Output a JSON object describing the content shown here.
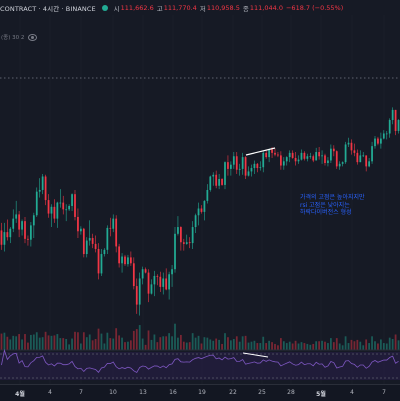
{
  "header": {
    "title": "CONTRACT · 4시간 · BINANCE",
    "open_label": "시",
    "open_value": "111,662.6",
    "high_label": "고",
    "high_value": "111,770.4",
    "low_label": "저",
    "low_value": "110,958.5",
    "close_label": "종",
    "close_value": "111,044.0",
    "change": "−618.7 (−0.55%)",
    "status_color": "#22ab94"
  },
  "indicator": {
    "label": "(종) 30 2"
  },
  "annotation": {
    "text": "가격의 고점은 높아지지만\nrsi 고점은 낮아지는\n하락다이버전스 형성",
    "color": "#2962ff"
  },
  "xaxis": {
    "ticks": [
      "4월",
      "4",
      "7",
      "10",
      "13",
      "16",
      "19",
      "22",
      "25",
      "28",
      "5월",
      "4",
      "7"
    ]
  },
  "colors": {
    "up": "#22ab94",
    "down": "#f23645",
    "rsi": "#7e57c2",
    "background": "#161a25"
  },
  "chart_data": {
    "type": "candlestick",
    "title": "",
    "candles_ohlc": [
      [
        78.0,
        78.9,
        75.7,
        76.3
      ],
      [
        76.3,
        78.9,
        75.5,
        77.8
      ],
      [
        77.8,
        79.3,
        76.8,
        77.2
      ],
      [
        77.2,
        78.4,
        76.5,
        78.2
      ],
      [
        78.2,
        80.5,
        77.8,
        79.4
      ],
      [
        79.4,
        81.5,
        78.9,
        79.9
      ],
      [
        79.9,
        80.3,
        77.2,
        78.1
      ],
      [
        78.1,
        79.3,
        77.4,
        79.1
      ],
      [
        79.1,
        79.6,
        76.5,
        77.0
      ],
      [
        77.0,
        77.4,
        76.2,
        76.9
      ],
      [
        76.9,
        79.0,
        76.1,
        78.6
      ],
      [
        78.6,
        80.1,
        77.1,
        79.8
      ],
      [
        79.8,
        83.1,
        79.6,
        82.6
      ],
      [
        82.6,
        84.2,
        81.9,
        82.8
      ],
      [
        82.8,
        84.7,
        82.3,
        84.4
      ],
      [
        84.4,
        84.6,
        81.0,
        81.6
      ],
      [
        81.6,
        82.3,
        79.5,
        80.0
      ],
      [
        80.0,
        81.1,
        78.4,
        80.8
      ],
      [
        80.8,
        81.7,
        78.9,
        79.4
      ],
      [
        79.4,
        81.4,
        78.3,
        81.3
      ],
      [
        81.3,
        82.9,
        80.7,
        81.3
      ],
      [
        81.3,
        82.1,
        79.9,
        80.5
      ],
      [
        80.5,
        81.1,
        79.1,
        80.5
      ],
      [
        80.5,
        81.1,
        80.3,
        80.9
      ],
      [
        80.9,
        82.4,
        80.3,
        82.3
      ],
      [
        82.3,
        82.8,
        79.2,
        79.6
      ],
      [
        79.6,
        80.6,
        77.1,
        77.9
      ],
      [
        77.9,
        78.5,
        77.5,
        78.2
      ],
      [
        78.2,
        78.3,
        74.8,
        75.2
      ],
      [
        75.2,
        77.2,
        74.8,
        76.8
      ],
      [
        76.8,
        79.2,
        76.2,
        77.1
      ],
      [
        77.1,
        77.6,
        75.9,
        76.4
      ],
      [
        76.4,
        77.4,
        75.4,
        75.8
      ],
      [
        75.8,
        76.5,
        72.2,
        72.9
      ],
      [
        72.9,
        75.8,
        72.6,
        75.2
      ],
      [
        75.2,
        75.9,
        74.9,
        75.7
      ],
      [
        75.7,
        78.6,
        75.2,
        78.3
      ],
      [
        78.3,
        79.5,
        77.3,
        78.2
      ],
      [
        78.2,
        79.9,
        77.8,
        79.4
      ],
      [
        79.4,
        79.8,
        75.4,
        76.1
      ],
      [
        76.1,
        76.4,
        73.6,
        74.1
      ],
      [
        74.1,
        75.3,
        73.0,
        74.9
      ],
      [
        74.9,
        75.1,
        73.8,
        74.0
      ],
      [
        74.0,
        75.1,
        73.7,
        74.8
      ],
      [
        74.8,
        75.5,
        73.8,
        74.1
      ],
      [
        74.1,
        74.8,
        71.0,
        71.4
      ],
      [
        71.4,
        72.3,
        68.1,
        69.2
      ],
      [
        69.2,
        73.0,
        67.9,
        72.3
      ],
      [
        72.3,
        73.7,
        71.6,
        73.4
      ],
      [
        73.4,
        73.6,
        72.9,
        73.0
      ],
      [
        73.0,
        73.4,
        69.5,
        70.5
      ],
      [
        70.5,
        72.2,
        70.4,
        71.6
      ],
      [
        71.6,
        73.2,
        70.2,
        72.6
      ],
      [
        72.6,
        72.8,
        71.5,
        72.5
      ],
      [
        72.5,
        73.1,
        70.7,
        71.3
      ],
      [
        71.3,
        73.0,
        70.4,
        72.3
      ],
      [
        72.3,
        73.5,
        70.9,
        71.0
      ],
      [
        71.0,
        73.1,
        69.8,
        72.8
      ],
      [
        72.8,
        73.9,
        71.3,
        73.4
      ],
      [
        73.4,
        78.4,
        73.0,
        77.6
      ],
      [
        77.6,
        79.7,
        77.4,
        78.4
      ],
      [
        78.4,
        78.5,
        75.6,
        76.6
      ],
      [
        76.6,
        77.0,
        75.6,
        76.4
      ],
      [
        76.4,
        77.5,
        76.3,
        76.6
      ],
      [
        76.6,
        77.2,
        75.9,
        76.5
      ],
      [
        76.5,
        79.1,
        75.8,
        78.4
      ],
      [
        78.4,
        80.0,
        77.7,
        79.8
      ],
      [
        79.8,
        81.3,
        78.6,
        80.6
      ],
      [
        80.6,
        81.0,
        80.0,
        80.2
      ],
      [
        80.2,
        81.6,
        79.2,
        81.5
      ],
      [
        81.5,
        83.5,
        81.2,
        82.8
      ],
      [
        82.8,
        84.5,
        82.6,
        84.4
      ],
      [
        84.4,
        84.9,
        83.3,
        84.6
      ],
      [
        84.6,
        85.1,
        83.0,
        83.3
      ],
      [
        83.3,
        84.7,
        82.9,
        84.1
      ],
      [
        84.1,
        84.2,
        83.3,
        83.4
      ],
      [
        83.4,
        86.2,
        82.9,
        86.1
      ],
      [
        86.1,
        86.9,
        84.5,
        85.3
      ],
      [
        85.3,
        86.2,
        84.5,
        85.8
      ],
      [
        85.8,
        87.3,
        85.3,
        86.8
      ],
      [
        86.8,
        87.3,
        84.7,
        85.2
      ],
      [
        85.2,
        85.9,
        84.5,
        85.3
      ],
      [
        85.3,
        87.2,
        84.6,
        86.7
      ],
      [
        86.7,
        86.8,
        84.1,
        84.5
      ],
      [
        84.5,
        85.6,
        84.4,
        85.0
      ],
      [
        85.0,
        85.8,
        84.4,
        85.4
      ],
      [
        85.4,
        86.3,
        84.7,
        85.9
      ],
      [
        85.9,
        86.0,
        84.9,
        85.4
      ],
      [
        85.4,
        86.2,
        85.1,
        85.5
      ],
      [
        85.5,
        87.4,
        84.9,
        87.2
      ],
      [
        87.2,
        87.6,
        86.5,
        86.7
      ],
      [
        86.7,
        87.7,
        86.1,
        87.6
      ],
      [
        87.6,
        87.9,
        86.6,
        87.2
      ],
      [
        87.2,
        87.7,
        86.8,
        87.0
      ],
      [
        87.0,
        87.3,
        86.7,
        86.9
      ],
      [
        86.9,
        87.4,
        85.2,
        85.7
      ],
      [
        85.7,
        86.7,
        85.2,
        86.2
      ],
      [
        86.2,
        86.8,
        85.7,
        86.7
      ],
      [
        86.7,
        87.5,
        86.1,
        87.2
      ],
      [
        87.2,
        87.5,
        86.5,
        86.6
      ],
      [
        86.6,
        87.3,
        85.7,
        86.2
      ],
      [
        86.2,
        86.9,
        85.9,
        86.4
      ],
      [
        86.4,
        87.6,
        86.3,
        87.2
      ],
      [
        87.2,
        87.4,
        86.3,
        86.5
      ],
      [
        86.5,
        87.1,
        86.2,
        86.8
      ],
      [
        86.8,
        87.2,
        86.5,
        86.8
      ],
      [
        86.8,
        87.0,
        86.1,
        86.3
      ],
      [
        86.3,
        87.8,
        86.3,
        87.3
      ],
      [
        87.3,
        87.9,
        86.4,
        86.8
      ],
      [
        86.8,
        87.5,
        85.9,
        86.9
      ],
      [
        86.9,
        87.1,
        85.7,
        86.0
      ],
      [
        86.0,
        86.7,
        85.6,
        86.3
      ],
      [
        86.3,
        88.2,
        86.0,
        87.7
      ],
      [
        87.7,
        88.1,
        86.8,
        87.4
      ],
      [
        87.4,
        87.5,
        85.3,
        85.6
      ],
      [
        85.6,
        86.2,
        85.2,
        85.9
      ],
      [
        85.9,
        86.2,
        85.6,
        86.1
      ],
      [
        86.1,
        88.5,
        85.9,
        88.2
      ],
      [
        88.2,
        89.0,
        87.9,
        88.4
      ],
      [
        88.4,
        88.8,
        87.0,
        87.5
      ],
      [
        87.5,
        88.3,
        86.8,
        87.2
      ],
      [
        87.2,
        87.6,
        85.8,
        86.1
      ],
      [
        86.1,
        87.5,
        86.1,
        86.9
      ],
      [
        86.9,
        87.3,
        86.7,
        86.9
      ],
      [
        86.9,
        86.9,
        85.0,
        85.6
      ],
      [
        85.6,
        86.6,
        85.5,
        86.2
      ],
      [
        86.2,
        88.5,
        85.9,
        88.0
      ],
      [
        88.0,
        89.2,
        87.7,
        88.9
      ],
      [
        88.9,
        89.1,
        88.1,
        88.3
      ],
      [
        88.3,
        89.6,
        87.7,
        88.9
      ],
      [
        88.9,
        89.9,
        88.8,
        89.5
      ],
      [
        89.5,
        89.8,
        88.8,
        89.5
      ],
      [
        89.5,
        91.3,
        89.0,
        91.1
      ],
      [
        91.1,
        92.6,
        90.6,
        92.3
      ],
      [
        92.3,
        92.3,
        89.3,
        89.8
      ],
      [
        89.8,
        91.2,
        89.5,
        91.1
      ]
    ],
    "x_tick_labels": [
      "4월",
      "4",
      "7",
      "10",
      "13",
      "16",
      "19",
      "22",
      "25",
      "28",
      "5월",
      "4",
      "7"
    ],
    "rsi_period": 30,
    "series_rsi": "RSI",
    "annotations": [
      "가격의 고점은 높아지지만\nrsi 고점은 낮아지는\n하락다이버전스 형성"
    ]
  }
}
